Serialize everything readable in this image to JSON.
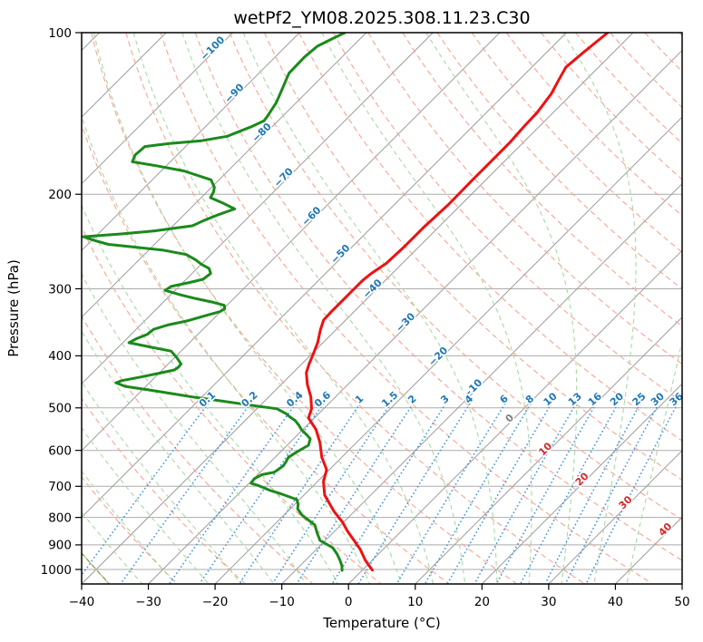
{
  "title": "wetPf2_YM08.2025.308.11.23.C30",
  "chart_data": {
    "type": "line",
    "subtype": "skew_t_log_p_sounding",
    "title": "wetPf2_YM08.2025.308.11.23.C30",
    "xlabel": "Temperature (°C)",
    "ylabel": "Pressure (hPa)",
    "xlim": [
      -40,
      50
    ],
    "ylim": [
      1064,
      100
    ],
    "y_scale": "log",
    "skew_deg": 45,
    "grid": true,
    "x_ticks": [
      -40,
      -30,
      -20,
      -10,
      0,
      10,
      20,
      30,
      40,
      50
    ],
    "y_ticks": [
      100,
      200,
      300,
      400,
      500,
      600,
      700,
      800,
      900,
      1000
    ],
    "isotherms": {
      "start": -130,
      "end": 50,
      "step": 10,
      "labels": [
        {
          "t": -100,
          "p": 108
        },
        {
          "t": -90,
          "p": 131
        },
        {
          "t": -80,
          "p": 155
        },
        {
          "t": -70,
          "p": 188
        },
        {
          "t": -60,
          "p": 222
        },
        {
          "t": -50,
          "p": 261
        },
        {
          "t": -40,
          "p": 303
        },
        {
          "t": -30,
          "p": 350
        },
        {
          "t": -20,
          "p": 405
        },
        {
          "t": -10,
          "p": 465
        },
        {
          "t": 0,
          "p": 528
        },
        {
          "t": 10,
          "p": 603
        },
        {
          "t": 20,
          "p": 686
        },
        {
          "t": 30,
          "p": 758
        },
        {
          "t": 40,
          "p": 851
        }
      ]
    },
    "dry_adiabats": {
      "theta_start": -40,
      "theta_end": 200,
      "step": 10
    },
    "moist_adiabats": {
      "t0_start": -40,
      "t0_end": 40,
      "step": 5
    },
    "overlap_adiabat": {
      "theta": -40,
      "p_from": 930,
      "p_to": 1064
    },
    "mixing_ratios": {
      "values": [
        0.1,
        0.2,
        0.4,
        0.6,
        1,
        1.5,
        2,
        3,
        4,
        6,
        8,
        10,
        13,
        16,
        20,
        25,
        30,
        36
      ],
      "label_p": 487,
      "p_top": 485
    },
    "series": [
      {
        "name": "temperature",
        "color": "#ee1111",
        "points_p_T": [
          [
            100,
            -43.8
          ],
          [
            105,
            -44.2
          ],
          [
            109,
            -44.5
          ],
          [
            116,
            -44.9
          ],
          [
            123,
            -44.0
          ],
          [
            130,
            -43.1
          ],
          [
            141,
            -42.4
          ],
          [
            149,
            -42.3
          ],
          [
            160,
            -42.0
          ],
          [
            174,
            -42.0
          ],
          [
            188,
            -42.0
          ],
          [
            209,
            -41.9
          ],
          [
            230,
            -42.2
          ],
          [
            250,
            -42.2
          ],
          [
            269,
            -42.4
          ],
          [
            280,
            -43.1
          ],
          [
            289,
            -43.4
          ],
          [
            300,
            -43.4
          ],
          [
            313,
            -43.4
          ],
          [
            331,
            -43.4
          ],
          [
            343,
            -43.3
          ],
          [
            358,
            -42.3
          ],
          [
            378,
            -40.8
          ],
          [
            398,
            -39.7
          ],
          [
            414,
            -38.9
          ],
          [
            430,
            -38.0
          ],
          [
            452,
            -36.1
          ],
          [
            477,
            -33.7
          ],
          [
            502,
            -31.8
          ],
          [
            522,
            -30.9
          ],
          [
            549,
            -28.0
          ],
          [
            580,
            -25.5
          ],
          [
            618,
            -23.0
          ],
          [
            652,
            -20.4
          ],
          [
            686,
            -19.1
          ],
          [
            727,
            -16.9
          ],
          [
            779,
            -13.1
          ],
          [
            816,
            -10.2
          ],
          [
            848,
            -8.1
          ],
          [
            883,
            -5.7
          ],
          [
            918,
            -3.4
          ],
          [
            962,
            -1.0
          ],
          [
            1003,
            1.5
          ]
        ]
      },
      {
        "name": "dewpoint",
        "color": "#1a8a1a",
        "points_p_T": [
          [
            100,
            -83.2
          ],
          [
            103,
            -84.3
          ],
          [
            106,
            -85.3
          ],
          [
            111,
            -85.6
          ],
          [
            119,
            -85.5
          ],
          [
            127,
            -84.2
          ],
          [
            135,
            -83.0
          ],
          [
            143,
            -82.3
          ],
          [
            146,
            -82.1
          ],
          [
            150,
            -83.2
          ],
          [
            156,
            -85.3
          ],
          [
            159,
            -88.5
          ],
          [
            161,
            -93.0
          ],
          [
            163,
            -96.1
          ],
          [
            169,
            -96.3
          ],
          [
            174,
            -95.7
          ],
          [
            177,
            -91.5
          ],
          [
            181,
            -86.6
          ],
          [
            188,
            -81.2
          ],
          [
            194,
            -79.6
          ],
          [
            198,
            -79.0
          ],
          [
            203,
            -78.6
          ],
          [
            208,
            -75.8
          ],
          [
            213,
            -73.3
          ],
          [
            218,
            -74.8
          ],
          [
            224,
            -76.2
          ],
          [
            229,
            -77.1
          ],
          [
            234,
            -82.0
          ],
          [
            237,
            -86.4
          ],
          [
            240,
            -91.8
          ],
          [
            244,
            -89.5
          ],
          [
            248,
            -86.9
          ],
          [
            254,
            -78.0
          ],
          [
            259,
            -73.7
          ],
          [
            265,
            -71.5
          ],
          [
            270,
            -70.0
          ],
          [
            275,
            -68.2
          ],
          [
            281,
            -67.2
          ],
          [
            288,
            -67.5
          ],
          [
            292,
            -69.0
          ],
          [
            297,
            -71.2
          ],
          [
            302,
            -71.5
          ],
          [
            308,
            -68.5
          ],
          [
            313,
            -65.6
          ],
          [
            318,
            -62.5
          ],
          [
            322,
            -60.4
          ],
          [
            327,
            -59.8
          ],
          [
            331,
            -60.1
          ],
          [
            337,
            -61.8
          ],
          [
            344,
            -63.5
          ],
          [
            350,
            -65.8
          ],
          [
            357,
            -67.4
          ],
          [
            365,
            -67.6
          ],
          [
            371,
            -68.5
          ],
          [
            378,
            -69.1
          ],
          [
            385,
            -65.3
          ],
          [
            392,
            -61.5
          ],
          [
            403,
            -59.7
          ],
          [
            414,
            -58.1
          ],
          [
            420,
            -58.0
          ],
          [
            425,
            -58.2
          ],
          [
            431,
            -60.0
          ],
          [
            438,
            -62.2
          ],
          [
            445,
            -64.5
          ],
          [
            449,
            -65.0
          ],
          [
            456,
            -63.1
          ],
          [
            463,
            -59.0
          ],
          [
            470,
            -55.2
          ],
          [
            477,
            -51.5
          ],
          [
            483,
            -47.9
          ],
          [
            493,
            -42.2
          ],
          [
            502,
            -37.0
          ],
          [
            512,
            -35.0
          ],
          [
            520,
            -33.8
          ],
          [
            528,
            -32.5
          ],
          [
            539,
            -31.2
          ],
          [
            549,
            -30.2
          ],
          [
            560,
            -28.8
          ],
          [
            571,
            -27.5
          ],
          [
            587,
            -26.8
          ],
          [
            603,
            -27.5
          ],
          [
            618,
            -28.0
          ],
          [
            630,
            -27.7
          ],
          [
            641,
            -27.5
          ],
          [
            652,
            -27.7
          ],
          [
            659,
            -27.9
          ],
          [
            666,
            -29.4
          ],
          [
            678,
            -29.9
          ],
          [
            691,
            -29.7
          ],
          [
            698,
            -28.2
          ],
          [
            713,
            -25.7
          ],
          [
            721,
            -24.0
          ],
          [
            741,
            -20.4
          ],
          [
            756,
            -19.5
          ],
          [
            771,
            -18.9
          ],
          [
            792,
            -17.3
          ],
          [
            810,
            -15.5
          ],
          [
            826,
            -13.9
          ],
          [
            856,
            -12.3
          ],
          [
            883,
            -10.8
          ],
          [
            911,
            -7.8
          ],
          [
            936,
            -6.2
          ],
          [
            962,
            -4.8
          ],
          [
            985,
            -3.7
          ],
          [
            1004,
            -3.0
          ]
        ]
      }
    ],
    "colors": {
      "temperature": "#ee1111",
      "dewpoint": "#1a8a1a",
      "isotherm": "#9b9b9b",
      "grid": "#ababab",
      "dry_adiabat": "#f7a592",
      "moist_adiabat": "#a9d8a4",
      "mixing_ratio": "#4696dc",
      "isotherm_label_neg": "#1f77b4",
      "isotherm_label_zero": "#7f7f7f",
      "isotherm_label_pos": "#d62728",
      "mixing_label": "#1f77b4",
      "overlap_adiabat": "#8f8f45",
      "frame": "#000000"
    }
  }
}
